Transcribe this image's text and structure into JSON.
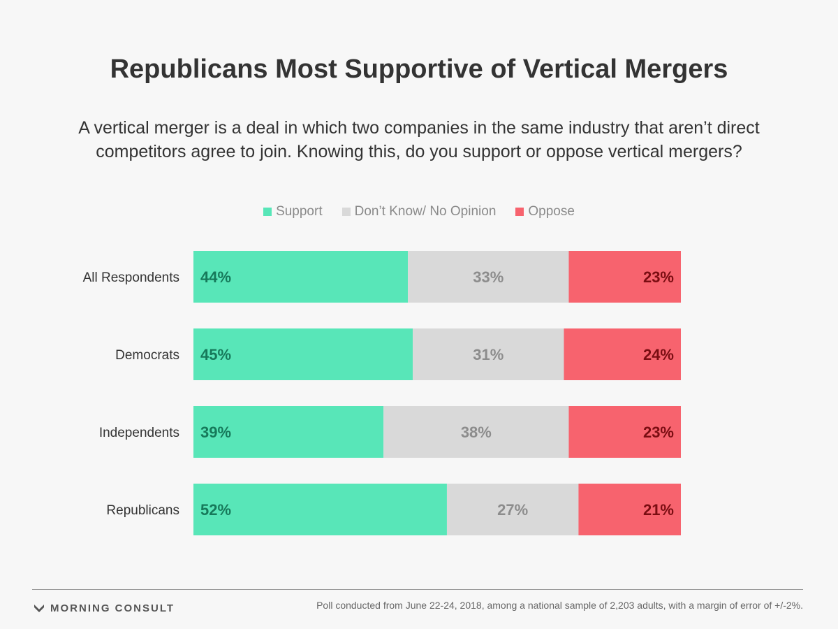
{
  "colors": {
    "support": "#58e6b8",
    "dont_know": "#d9d9d9",
    "oppose": "#f7636e",
    "support_text": "#16795a",
    "dont_know_text": "#8c8c8c",
    "oppose_text": "#7a0d12"
  },
  "chart_data": {
    "type": "bar",
    "orientation": "horizontal",
    "stacked": true,
    "title": "Republicans Most Supportive of Vertical Mergers",
    "subtitle": "A vertical merger is a deal in which two companies in the same industry that aren’t direct competitors agree to join. Knowing this, do you support or oppose vertical mergers?",
    "categories": [
      "All Respondents",
      "Democrats",
      "Independents",
      "Republicans"
    ],
    "series": [
      {
        "name": "Support",
        "values": [
          44,
          45,
          39,
          52
        ]
      },
      {
        "name": "Don’t Know/ No Opinion",
        "values": [
          33,
          31,
          38,
          27
        ]
      },
      {
        "name": "Oppose",
        "values": [
          23,
          24,
          23,
          21
        ]
      }
    ],
    "value_suffix": "%",
    "xlim": [
      0,
      100
    ],
    "legend_position": "top-center",
    "grid": false
  },
  "footer": {
    "brand": "MORNING CONSULT",
    "note": "Poll conducted from June 22-24, 2018, among a national sample of 2,203 adults, with a margin of error of +/-2%."
  }
}
